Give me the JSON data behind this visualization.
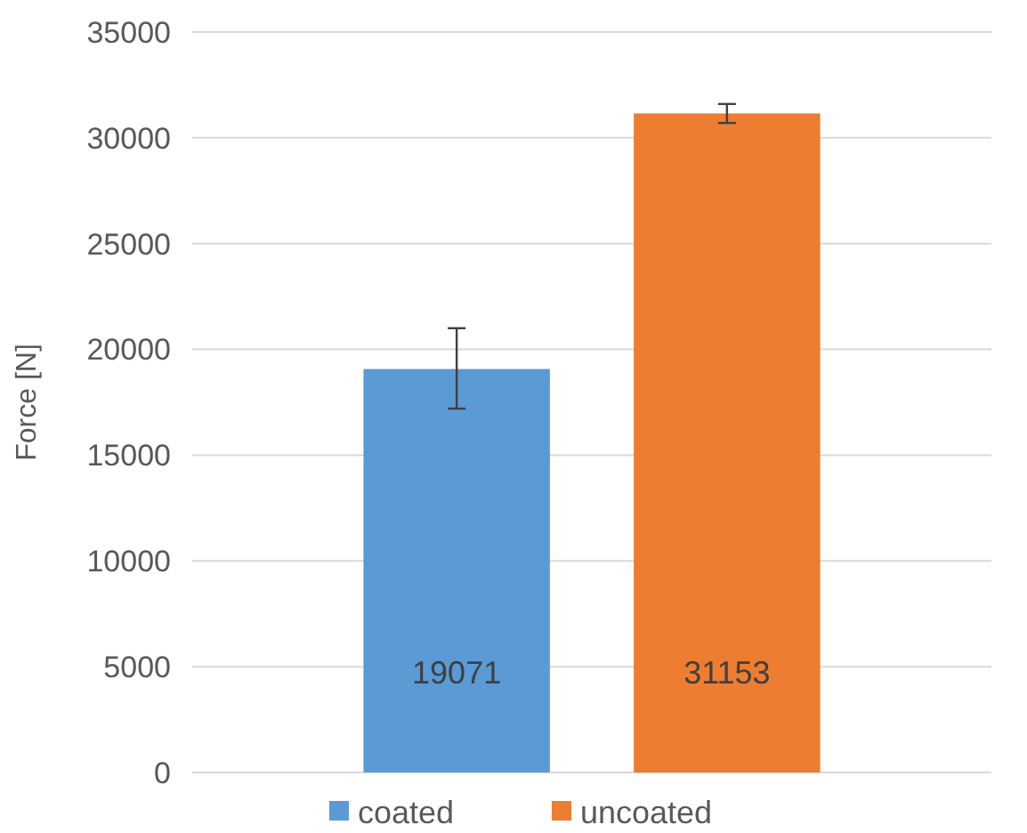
{
  "chart_data": {
    "type": "bar",
    "ylabel": "Force [N]",
    "categories": [
      null
    ],
    "series": [
      {
        "name": "coated",
        "color": "#5b9bd5",
        "values": [
          19071
        ],
        "errors": [
          [
            17200,
            21000
          ]
        ]
      },
      {
        "name": "uncoated",
        "color": "#ed7d31",
        "values": [
          31153
        ],
        "errors": [
          [
            30700,
            31600
          ]
        ]
      }
    ],
    "ylim": [
      0,
      35000
    ],
    "yticks": [
      0,
      5000,
      10000,
      15000,
      20000,
      25000,
      30000,
      35000
    ],
    "grid": "y",
    "legend": "bottom",
    "data_labels": true
  }
}
